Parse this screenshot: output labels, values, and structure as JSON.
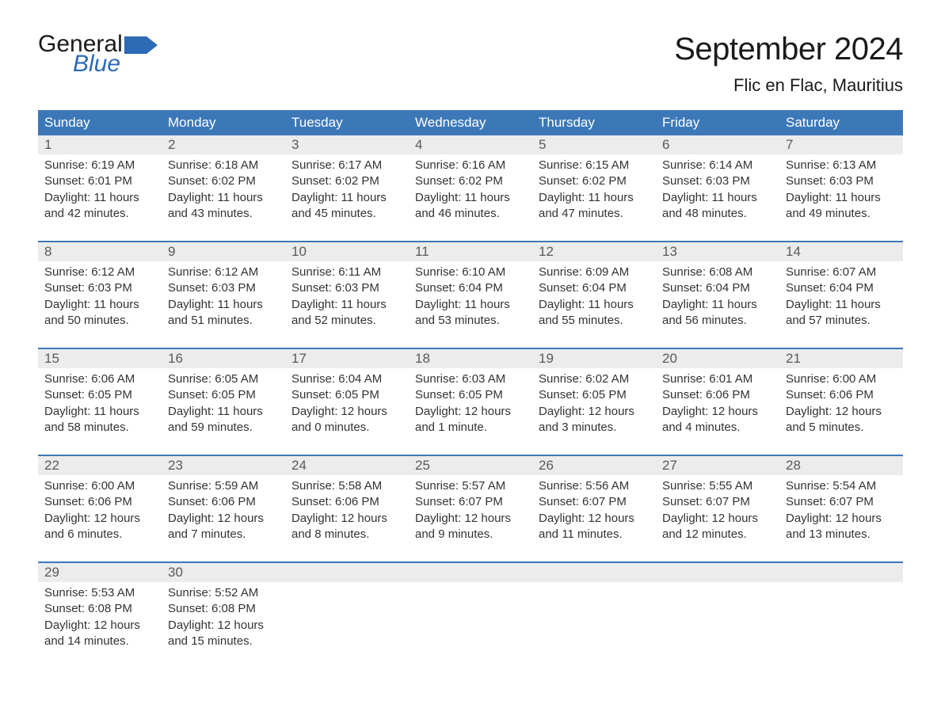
{
  "logo": {
    "word1": "General",
    "word2": "Blue",
    "flag_color": "#2d6bb5"
  },
  "header": {
    "month_title": "September 2024",
    "location": "Flic en Flac, Mauritius"
  },
  "styling": {
    "header_bg": "#3c78b8",
    "header_text": "#ffffff",
    "daynum_bg": "#ececec",
    "daynum_text": "#5a5a5a",
    "body_text": "#333333",
    "week_border": "#3c78b8",
    "page_bg": "#ffffff",
    "title_fontsize": 40,
    "location_fontsize": 22,
    "weekday_fontsize": 17,
    "body_fontsize": 15
  },
  "weekdays": [
    "Sunday",
    "Monday",
    "Tuesday",
    "Wednesday",
    "Thursday",
    "Friday",
    "Saturday"
  ],
  "weeks": [
    [
      {
        "num": "1",
        "sunrise": "Sunrise: 6:19 AM",
        "sunset": "Sunset: 6:01 PM",
        "day1": "Daylight: 11 hours",
        "day2": "and 42 minutes."
      },
      {
        "num": "2",
        "sunrise": "Sunrise: 6:18 AM",
        "sunset": "Sunset: 6:02 PM",
        "day1": "Daylight: 11 hours",
        "day2": "and 43 minutes."
      },
      {
        "num": "3",
        "sunrise": "Sunrise: 6:17 AM",
        "sunset": "Sunset: 6:02 PM",
        "day1": "Daylight: 11 hours",
        "day2": "and 45 minutes."
      },
      {
        "num": "4",
        "sunrise": "Sunrise: 6:16 AM",
        "sunset": "Sunset: 6:02 PM",
        "day1": "Daylight: 11 hours",
        "day2": "and 46 minutes."
      },
      {
        "num": "5",
        "sunrise": "Sunrise: 6:15 AM",
        "sunset": "Sunset: 6:02 PM",
        "day1": "Daylight: 11 hours",
        "day2": "and 47 minutes."
      },
      {
        "num": "6",
        "sunrise": "Sunrise: 6:14 AM",
        "sunset": "Sunset: 6:03 PM",
        "day1": "Daylight: 11 hours",
        "day2": "and 48 minutes."
      },
      {
        "num": "7",
        "sunrise": "Sunrise: 6:13 AM",
        "sunset": "Sunset: 6:03 PM",
        "day1": "Daylight: 11 hours",
        "day2": "and 49 minutes."
      }
    ],
    [
      {
        "num": "8",
        "sunrise": "Sunrise: 6:12 AM",
        "sunset": "Sunset: 6:03 PM",
        "day1": "Daylight: 11 hours",
        "day2": "and 50 minutes."
      },
      {
        "num": "9",
        "sunrise": "Sunrise: 6:12 AM",
        "sunset": "Sunset: 6:03 PM",
        "day1": "Daylight: 11 hours",
        "day2": "and 51 minutes."
      },
      {
        "num": "10",
        "sunrise": "Sunrise: 6:11 AM",
        "sunset": "Sunset: 6:03 PM",
        "day1": "Daylight: 11 hours",
        "day2": "and 52 minutes."
      },
      {
        "num": "11",
        "sunrise": "Sunrise: 6:10 AM",
        "sunset": "Sunset: 6:04 PM",
        "day1": "Daylight: 11 hours",
        "day2": "and 53 minutes."
      },
      {
        "num": "12",
        "sunrise": "Sunrise: 6:09 AM",
        "sunset": "Sunset: 6:04 PM",
        "day1": "Daylight: 11 hours",
        "day2": "and 55 minutes."
      },
      {
        "num": "13",
        "sunrise": "Sunrise: 6:08 AM",
        "sunset": "Sunset: 6:04 PM",
        "day1": "Daylight: 11 hours",
        "day2": "and 56 minutes."
      },
      {
        "num": "14",
        "sunrise": "Sunrise: 6:07 AM",
        "sunset": "Sunset: 6:04 PM",
        "day1": "Daylight: 11 hours",
        "day2": "and 57 minutes."
      }
    ],
    [
      {
        "num": "15",
        "sunrise": "Sunrise: 6:06 AM",
        "sunset": "Sunset: 6:05 PM",
        "day1": "Daylight: 11 hours",
        "day2": "and 58 minutes."
      },
      {
        "num": "16",
        "sunrise": "Sunrise: 6:05 AM",
        "sunset": "Sunset: 6:05 PM",
        "day1": "Daylight: 11 hours",
        "day2": "and 59 minutes."
      },
      {
        "num": "17",
        "sunrise": "Sunrise: 6:04 AM",
        "sunset": "Sunset: 6:05 PM",
        "day1": "Daylight: 12 hours",
        "day2": "and 0 minutes."
      },
      {
        "num": "18",
        "sunrise": "Sunrise: 6:03 AM",
        "sunset": "Sunset: 6:05 PM",
        "day1": "Daylight: 12 hours",
        "day2": "and 1 minute."
      },
      {
        "num": "19",
        "sunrise": "Sunrise: 6:02 AM",
        "sunset": "Sunset: 6:05 PM",
        "day1": "Daylight: 12 hours",
        "day2": "and 3 minutes."
      },
      {
        "num": "20",
        "sunrise": "Sunrise: 6:01 AM",
        "sunset": "Sunset: 6:06 PM",
        "day1": "Daylight: 12 hours",
        "day2": "and 4 minutes."
      },
      {
        "num": "21",
        "sunrise": "Sunrise: 6:00 AM",
        "sunset": "Sunset: 6:06 PM",
        "day1": "Daylight: 12 hours",
        "day2": "and 5 minutes."
      }
    ],
    [
      {
        "num": "22",
        "sunrise": "Sunrise: 6:00 AM",
        "sunset": "Sunset: 6:06 PM",
        "day1": "Daylight: 12 hours",
        "day2": "and 6 minutes."
      },
      {
        "num": "23",
        "sunrise": "Sunrise: 5:59 AM",
        "sunset": "Sunset: 6:06 PM",
        "day1": "Daylight: 12 hours",
        "day2": "and 7 minutes."
      },
      {
        "num": "24",
        "sunrise": "Sunrise: 5:58 AM",
        "sunset": "Sunset: 6:06 PM",
        "day1": "Daylight: 12 hours",
        "day2": "and 8 minutes."
      },
      {
        "num": "25",
        "sunrise": "Sunrise: 5:57 AM",
        "sunset": "Sunset: 6:07 PM",
        "day1": "Daylight: 12 hours",
        "day2": "and 9 minutes."
      },
      {
        "num": "26",
        "sunrise": "Sunrise: 5:56 AM",
        "sunset": "Sunset: 6:07 PM",
        "day1": "Daylight: 12 hours",
        "day2": "and 11 minutes."
      },
      {
        "num": "27",
        "sunrise": "Sunrise: 5:55 AM",
        "sunset": "Sunset: 6:07 PM",
        "day1": "Daylight: 12 hours",
        "day2": "and 12 minutes."
      },
      {
        "num": "28",
        "sunrise": "Sunrise: 5:54 AM",
        "sunset": "Sunset: 6:07 PM",
        "day1": "Daylight: 12 hours",
        "day2": "and 13 minutes."
      }
    ],
    [
      {
        "num": "29",
        "sunrise": "Sunrise: 5:53 AM",
        "sunset": "Sunset: 6:08 PM",
        "day1": "Daylight: 12 hours",
        "day2": "and 14 minutes."
      },
      {
        "num": "30",
        "sunrise": "Sunrise: 5:52 AM",
        "sunset": "Sunset: 6:08 PM",
        "day1": "Daylight: 12 hours",
        "day2": "and 15 minutes."
      },
      null,
      null,
      null,
      null,
      null
    ]
  ]
}
